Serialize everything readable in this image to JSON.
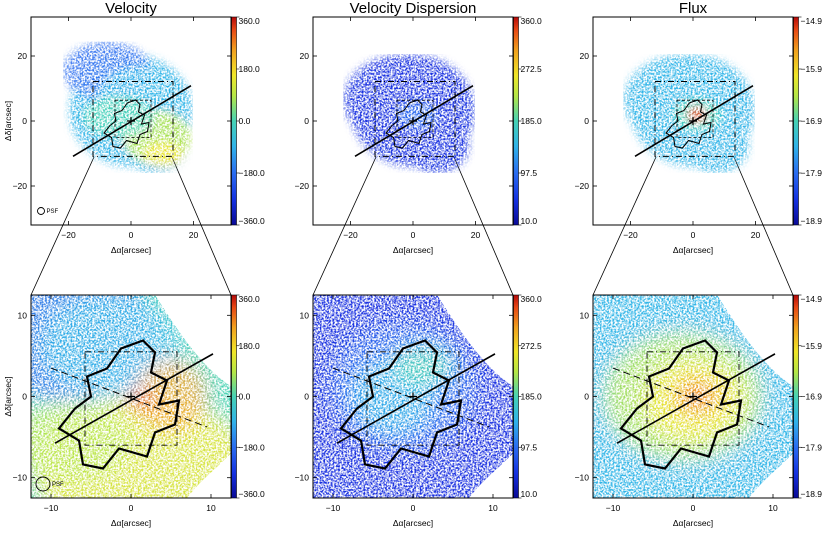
{
  "chart_data": [
    {
      "type": "heatmap",
      "title": "Velocity",
      "xlabel": "Δα[arcsec]",
      "ylabel": "Δδ[arcsec]",
      "xlim": [
        -32,
        32
      ],
      "ylim": [
        -32,
        32
      ],
      "xticks": [
        "−20",
        "0",
        "20"
      ],
      "yticks": [
        "20",
        "0",
        "−20"
      ],
      "colorbar": {
        "ticks": [
          "360.0",
          "180.0",
          "0.0",
          "−180.0",
          "−360.0"
        ],
        "range": [
          -360,
          360
        ]
      },
      "psf_label": "PSF",
      "map": "velocity"
    },
    {
      "type": "heatmap",
      "title": "Velocity Dispersion",
      "xlabel": "Δα[arcsec]",
      "ylabel": "",
      "xlim": [
        -32,
        32
      ],
      "ylim": [
        -32,
        32
      ],
      "xticks": [
        "−20",
        "0",
        "20"
      ],
      "yticks": [
        "20",
        "0",
        "−20"
      ],
      "colorbar": {
        "ticks": [
          "360.0",
          "272.5",
          "185.0",
          "97.5",
          "10.0"
        ],
        "range": [
          10,
          360
        ]
      },
      "psf_label": "",
      "map": "dispersion"
    },
    {
      "type": "heatmap",
      "title": "Flux",
      "xlabel": "Δα[arcsec]",
      "ylabel": "",
      "xlim": [
        -32,
        32
      ],
      "ylim": [
        -32,
        32
      ],
      "xticks": [
        "−20",
        "0",
        "20"
      ],
      "yticks": [
        "20",
        "0",
        "−20"
      ],
      "colorbar": {
        "ticks": [
          "−14.9",
          "−15.9",
          "−16.9",
          "−17.9",
          "−18.9"
        ],
        "range": [
          -18.9,
          -14.9
        ]
      },
      "psf_label": "",
      "map": "flux"
    },
    {
      "type": "heatmap",
      "title": "",
      "xlabel": "Δα[arcsec]",
      "ylabel": "Δδ[arcsec]",
      "xlim": [
        -12.5,
        12.5
      ],
      "ylim": [
        -12.5,
        12.5
      ],
      "xticks": [
        "−10",
        "0",
        "10"
      ],
      "yticks": [
        "10",
        "0",
        "−10"
      ],
      "colorbar": {
        "ticks": [
          "360.0",
          "180.0",
          "0.0",
          "−180.0",
          "−360.0"
        ],
        "range": [
          -360,
          360
        ]
      },
      "psf_label": "PSF",
      "map": "velocity"
    },
    {
      "type": "heatmap",
      "title": "",
      "xlabel": "Δα[arcsec]",
      "ylabel": "",
      "xlim": [
        -12.5,
        12.5
      ],
      "ylim": [
        -12.5,
        12.5
      ],
      "xticks": [
        "−10",
        "0",
        "10"
      ],
      "yticks": [
        "10",
        "0",
        "−10"
      ],
      "colorbar": {
        "ticks": [
          "360.0",
          "272.5",
          "185.0",
          "97.5",
          "10.0"
        ],
        "range": [
          10,
          360
        ]
      },
      "psf_label": "",
      "map": "dispersion"
    },
    {
      "type": "heatmap",
      "title": "",
      "xlabel": "Δα[arcsec]",
      "ylabel": "",
      "xlim": [
        -12.5,
        12.5
      ],
      "ylim": [
        -12.5,
        12.5
      ],
      "xticks": [
        "−10",
        "0",
        "10"
      ],
      "yticks": [
        "10",
        "0",
        "−10"
      ],
      "colorbar": {
        "ticks": [
          "−14.9",
          "−15.9",
          "−16.9",
          "−17.9",
          "−18.9"
        ],
        "range": [
          -18.9,
          -14.9
        ]
      },
      "psf_label": "",
      "map": "flux"
    }
  ],
  "colors": {
    "cmap": [
      "#0a0a96",
      "#1430e0",
      "#2a6cf0",
      "#30b4e8",
      "#46d2b4",
      "#b4e646",
      "#f0e628",
      "#f0a01e",
      "#e64614",
      "#b40a0a"
    ],
    "background": "#ffffff"
  }
}
